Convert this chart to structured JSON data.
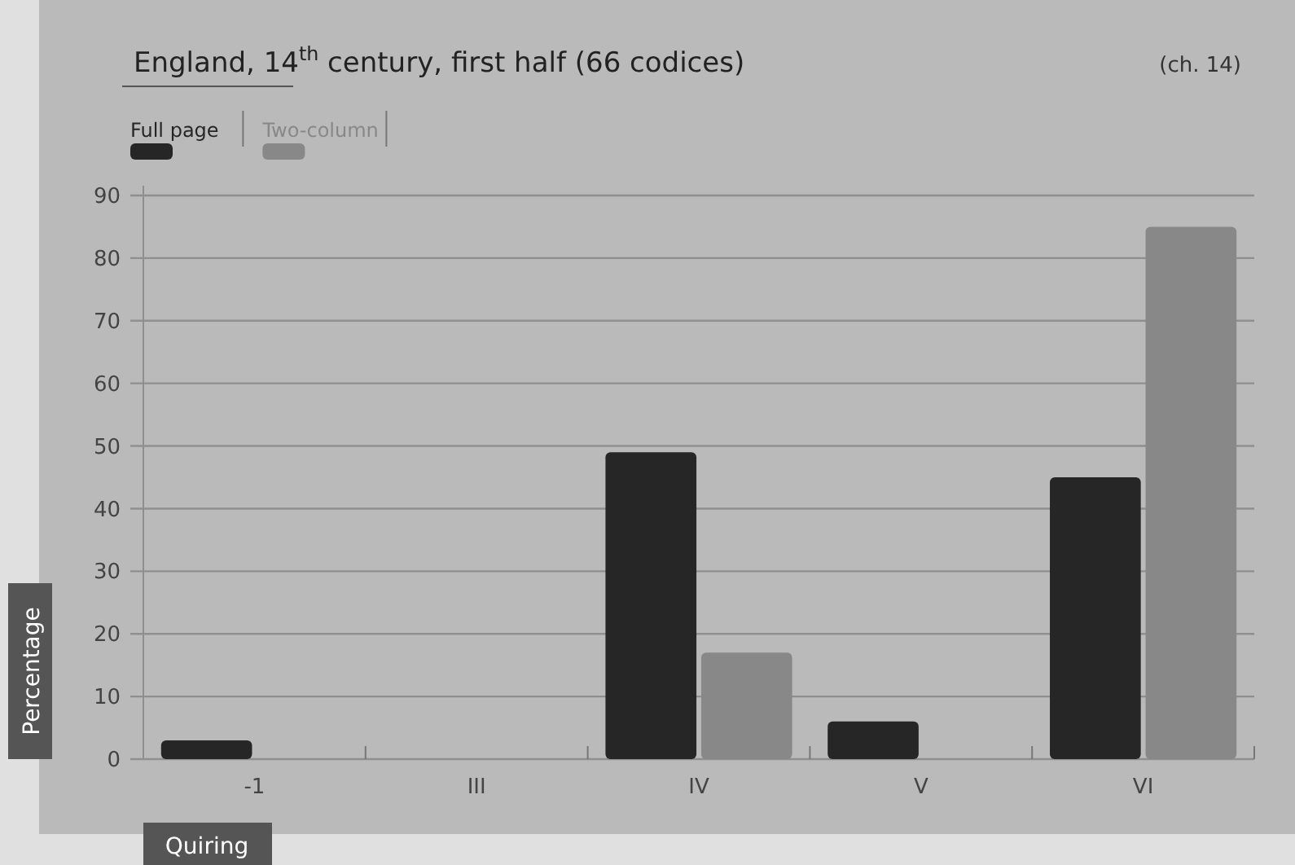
{
  "chart_data": {
    "type": "bar",
    "title": "England, 14$^{th}$ century, first half (66 codices)",
    "annotations": [
      "(ch. 14)"
    ],
    "xlabel": "Quiring",
    "ylabel": "Percentage",
    "categories": [
      "-1",
      "III",
      "IV",
      "V",
      "VI"
    ],
    "series": [
      {
        "name": "Full page",
        "color": "#262626",
        "values": [
          3,
          0,
          49,
          6,
          45
        ]
      },
      {
        "name": "Two-column",
        "color": "#888888",
        "values": [
          0,
          0,
          17,
          0,
          85
        ]
      }
    ],
    "ylim": [
      0,
      90
    ],
    "yticks": [
      0,
      10,
      20,
      30,
      40,
      50,
      60,
      70,
      80,
      90
    ],
    "grid": "y",
    "legend": "top left"
  }
}
